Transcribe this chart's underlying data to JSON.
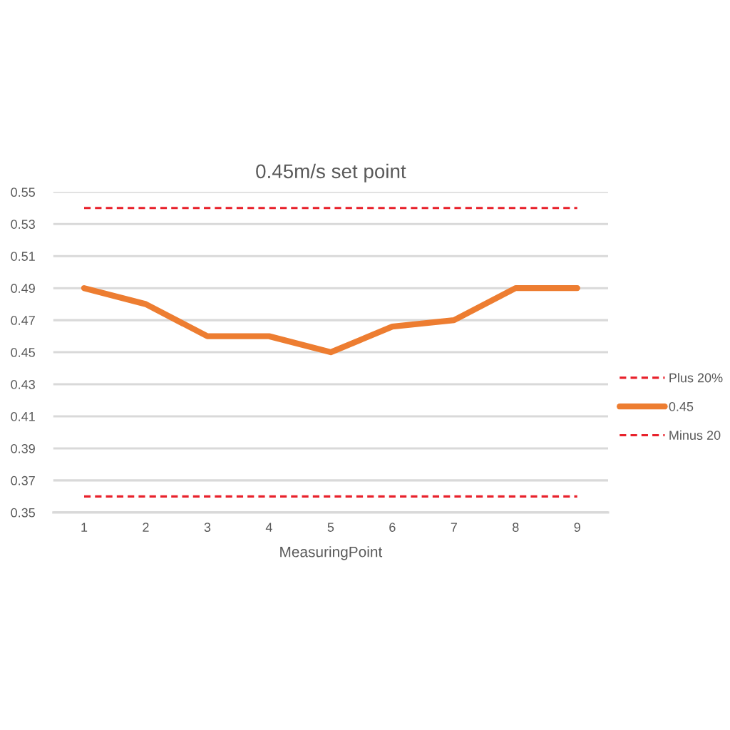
{
  "chart_data": {
    "type": "line",
    "title": "0.45m/s set point",
    "xlabel": "MeasuringPoint",
    "categories": [
      "1",
      "2",
      "3",
      "4",
      "5",
      "6",
      "7",
      "8",
      "9"
    ],
    "series": [
      {
        "name": "Plus 20%",
        "color": "#e8212b",
        "line_style": "dashed",
        "values": [
          0.54,
          0.54,
          0.54,
          0.54,
          0.54,
          0.54,
          0.54,
          0.54,
          0.54
        ]
      },
      {
        "name": "0.45",
        "color": "#ed7d31",
        "line_style": "solid",
        "values": [
          0.49,
          0.48,
          0.46,
          0.46,
          0.45,
          0.466,
          0.47,
          0.49,
          0.49
        ]
      },
      {
        "name": "Minus 20",
        "color": "#e8212b",
        "line_style": "dashed",
        "values": [
          0.36,
          0.36,
          0.36,
          0.36,
          0.36,
          0.36,
          0.36,
          0.36,
          0.36
        ]
      }
    ],
    "ylim": [
      0.35,
      0.55
    ],
    "yticks": [
      {
        "value": 0.35,
        "label": "0.35"
      },
      {
        "value": 0.37,
        "label": "0.37"
      },
      {
        "value": 0.39,
        "label": "0.39"
      },
      {
        "value": 0.41,
        "label": "0.41"
      },
      {
        "value": 0.43,
        "label": "0.43"
      },
      {
        "value": 0.45,
        "label": "0.45"
      },
      {
        "value": 0.47,
        "label": "0.47"
      },
      {
        "value": 0.49,
        "label": "0.49"
      },
      {
        "value": 0.51,
        "label": "0.51"
      },
      {
        "value": 0.53,
        "label": "0.53"
      },
      {
        "value": 0.55,
        "label": "0.55"
      }
    ],
    "grid": "y",
    "legend": "right",
    "marker": "none"
  }
}
